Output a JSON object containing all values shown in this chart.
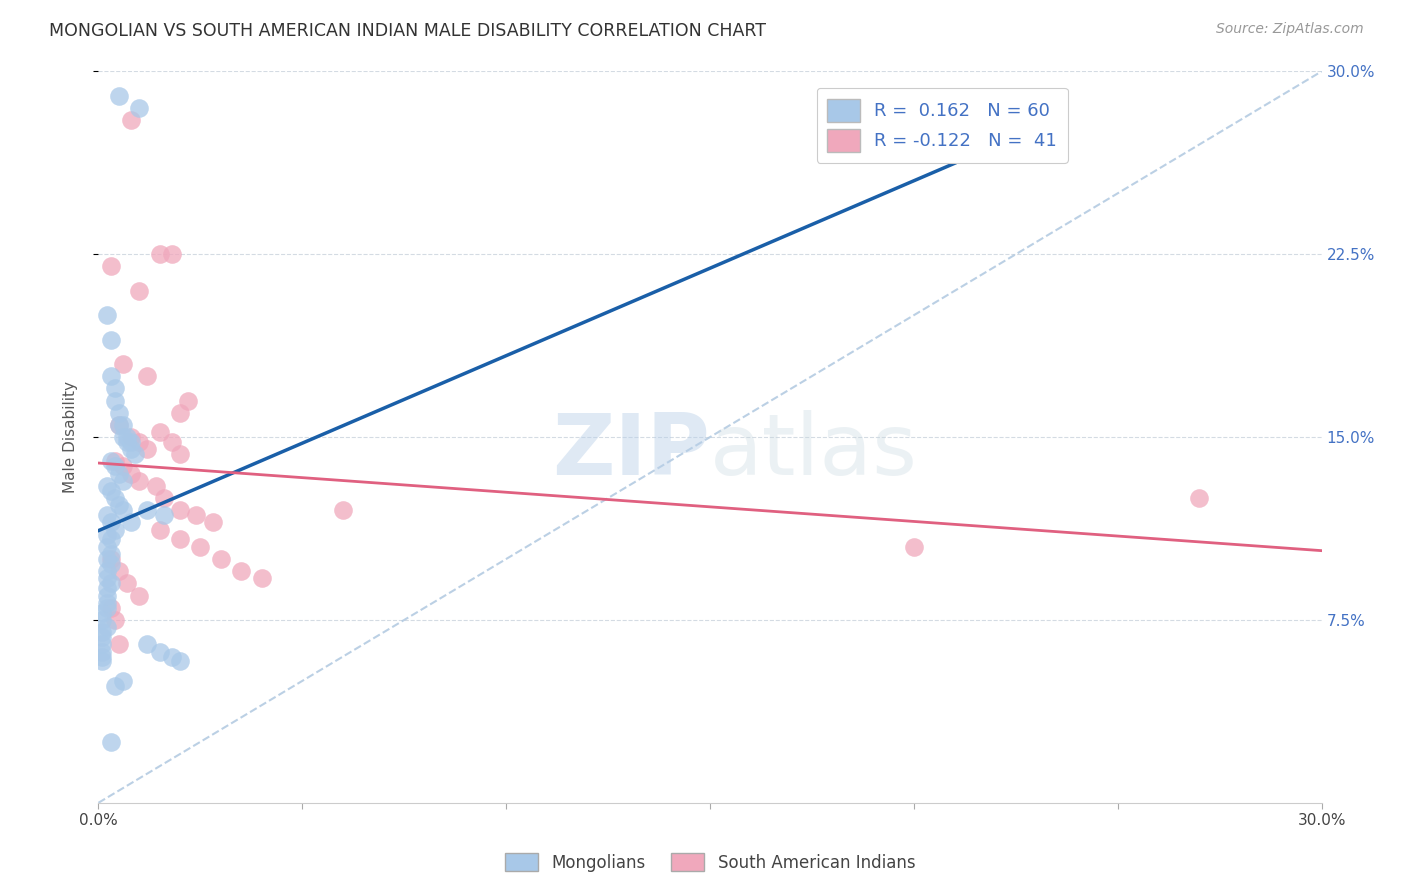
{
  "title": "MONGOLIAN VS SOUTH AMERICAN INDIAN MALE DISABILITY CORRELATION CHART",
  "source": "Source: ZipAtlas.com",
  "ylabel": "Male Disability",
  "xlim": [
    0.0,
    0.3
  ],
  "ylim": [
    0.0,
    0.3
  ],
  "xticks": [
    0.0,
    0.05,
    0.1,
    0.15,
    0.2,
    0.25,
    0.3
  ],
  "yticks": [
    0.075,
    0.15,
    0.225,
    0.3
  ],
  "ytick_labels": [
    "7.5%",
    "15.0%",
    "22.5%",
    "30.0%"
  ],
  "xtick_labels": [
    "0.0%",
    "",
    "",
    "",
    "",
    "",
    "30.0%"
  ],
  "bg_color": "#ffffff",
  "grid_color": "#d0d8e0",
  "mongolian_color": "#a8c8e8",
  "sa_indian_color": "#f0a8bc",
  "mongolian_line_color": "#1a5fa8",
  "sa_indian_line_color": "#e06080",
  "diagonal_color": "#b0c8e0",
  "legend_R1": "0.162",
  "legend_N1": "60",
  "legend_R2": "-0.122",
  "legend_N2": "41",
  "mongolian_x": [
    0.005,
    0.01,
    0.002,
    0.003,
    0.003,
    0.004,
    0.004,
    0.005,
    0.005,
    0.006,
    0.006,
    0.007,
    0.007,
    0.008,
    0.008,
    0.009,
    0.003,
    0.004,
    0.005,
    0.006,
    0.002,
    0.003,
    0.004,
    0.005,
    0.006,
    0.002,
    0.003,
    0.004,
    0.002,
    0.003,
    0.002,
    0.003,
    0.002,
    0.003,
    0.002,
    0.002,
    0.003,
    0.002,
    0.002,
    0.002,
    0.002,
    0.001,
    0.001,
    0.002,
    0.001,
    0.001,
    0.001,
    0.001,
    0.001,
    0.001,
    0.012,
    0.015,
    0.018,
    0.02,
    0.012,
    0.016,
    0.008,
    0.006,
    0.004,
    0.003
  ],
  "mongolian_y": [
    0.29,
    0.285,
    0.2,
    0.19,
    0.175,
    0.17,
    0.165,
    0.16,
    0.155,
    0.155,
    0.15,
    0.15,
    0.148,
    0.148,
    0.145,
    0.143,
    0.14,
    0.138,
    0.135,
    0.132,
    0.13,
    0.128,
    0.125,
    0.122,
    0.12,
    0.118,
    0.115,
    0.112,
    0.11,
    0.108,
    0.105,
    0.102,
    0.1,
    0.098,
    0.095,
    0.092,
    0.09,
    0.088,
    0.085,
    0.082,
    0.08,
    0.078,
    0.075,
    0.072,
    0.07,
    0.068,
    0.065,
    0.062,
    0.06,
    0.058,
    0.065,
    0.062,
    0.06,
    0.058,
    0.12,
    0.118,
    0.115,
    0.05,
    0.048,
    0.025
  ],
  "sa_indian_x": [
    0.008,
    0.015,
    0.003,
    0.01,
    0.018,
    0.022,
    0.006,
    0.012,
    0.02,
    0.005,
    0.008,
    0.01,
    0.012,
    0.015,
    0.018,
    0.02,
    0.004,
    0.006,
    0.008,
    0.01,
    0.014,
    0.016,
    0.02,
    0.024,
    0.028,
    0.015,
    0.02,
    0.025,
    0.03,
    0.035,
    0.04,
    0.003,
    0.005,
    0.007,
    0.01,
    0.003,
    0.004,
    0.005,
    0.27,
    0.2,
    0.06
  ],
  "sa_indian_y": [
    0.28,
    0.225,
    0.22,
    0.21,
    0.225,
    0.165,
    0.18,
    0.175,
    0.16,
    0.155,
    0.15,
    0.148,
    0.145,
    0.152,
    0.148,
    0.143,
    0.14,
    0.138,
    0.135,
    0.132,
    0.13,
    0.125,
    0.12,
    0.118,
    0.115,
    0.112,
    0.108,
    0.105,
    0.1,
    0.095,
    0.092,
    0.1,
    0.095,
    0.09,
    0.085,
    0.08,
    0.075,
    0.065,
    0.125,
    0.105,
    0.12
  ]
}
